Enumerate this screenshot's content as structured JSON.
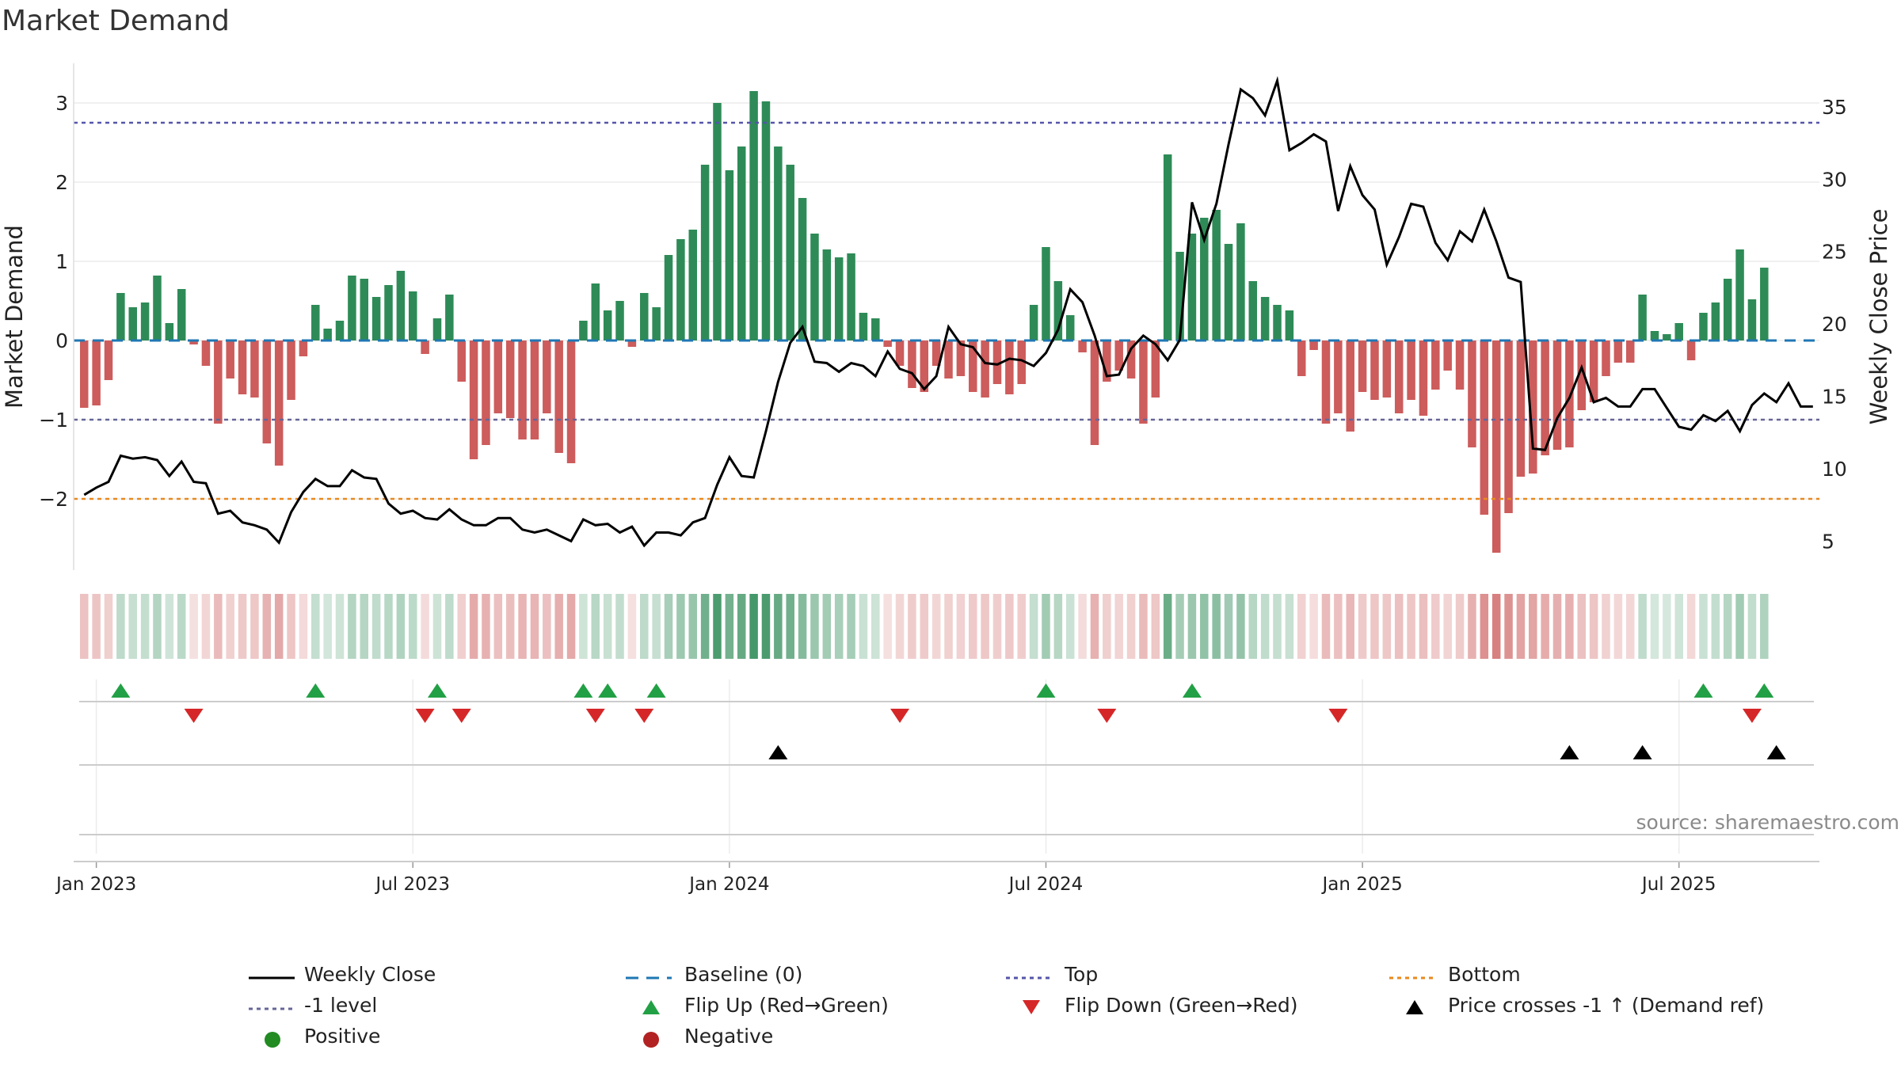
{
  "chart_data": {
    "type": "bar",
    "title": "Market Demand",
    "left_axis": {
      "label": "Market Demand",
      "ticks": [
        3,
        2,
        1,
        0,
        -1,
        -2
      ],
      "tick_labels": [
        "3",
        "2",
        "1",
        "0",
        "−1",
        "−2"
      ],
      "range": [
        -2.9,
        3.5
      ]
    },
    "right_axis": {
      "label": "Weekly Close Price",
      "ticks": [
        35,
        30,
        25,
        20,
        15,
        10,
        5
      ],
      "range": [
        3,
        38
      ]
    },
    "reference_levels": {
      "top": 2.75,
      "bottom": -2.0,
      "minus_one": -1.0,
      "baseline": 0
    },
    "x_tick_labels": [
      "Jan 2023",
      "Jul 2023",
      "Jan 2024",
      "Jul 2024",
      "Jan 2025",
      "Jul 2025"
    ],
    "x_tick_indices": [
      1,
      27,
      53,
      79,
      105,
      131
    ],
    "series": [
      {
        "name": "Market Demand",
        "values": [
          -0.85,
          -0.82,
          -0.5,
          0.6,
          0.42,
          0.48,
          0.82,
          0.22,
          0.65,
          -0.05,
          -0.32,
          -1.05,
          -0.48,
          -0.68,
          -0.72,
          -1.3,
          -1.58,
          -0.75,
          -0.2,
          0.45,
          0.15,
          0.25,
          0.82,
          0.78,
          0.55,
          0.7,
          0.88,
          0.62,
          -0.17,
          0.28,
          0.58,
          -0.52,
          -1.5,
          -1.32,
          -0.92,
          -0.98,
          -1.25,
          -1.25,
          -0.92,
          -1.42,
          -1.55,
          0.25,
          0.72,
          0.38,
          0.5,
          -0.08,
          0.6,
          0.42,
          1.08,
          1.28,
          1.4,
          2.22,
          3.0,
          2.15,
          2.45,
          3.15,
          3.02,
          2.45,
          2.22,
          1.8,
          1.35,
          1.15,
          1.05,
          1.1,
          0.35,
          0.28,
          -0.08,
          -0.32,
          -0.6,
          -0.65,
          -0.32,
          -0.48,
          -0.45,
          -0.65,
          -0.72,
          -0.55,
          -0.68,
          -0.55,
          0.45,
          1.18,
          0.75,
          0.32,
          -0.15,
          -1.32,
          -0.52,
          -0.38,
          -0.48,
          -1.05,
          -0.72,
          2.35,
          1.12,
          1.35,
          1.55,
          1.65,
          1.22,
          1.48,
          0.75,
          0.55,
          0.45,
          0.38,
          -0.45,
          -0.12,
          -1.05,
          -0.92,
          -1.15,
          -0.65,
          -0.75,
          -0.72,
          -0.92,
          -0.75,
          -0.95,
          -0.62,
          -0.38,
          -0.62,
          -1.35,
          -2.2,
          -2.68,
          -2.18,
          -1.72,
          -1.68,
          -1.45,
          -1.38,
          -1.35,
          -0.88,
          -0.78,
          -0.45,
          -0.28,
          -0.28,
          0.58,
          0.12,
          0.08,
          0.22,
          -0.25,
          0.35,
          0.48,
          0.78,
          1.15,
          0.52,
          0.92
        ]
      },
      {
        "name": "Weekly Close",
        "values": [
          8.2,
          8.7,
          9.1,
          10.9,
          10.7,
          10.8,
          10.6,
          9.5,
          10.5,
          9.1,
          9.0,
          6.9,
          7.1,
          6.3,
          6.1,
          5.8,
          4.9,
          7.0,
          8.4,
          9.3,
          8.8,
          8.8,
          9.9,
          9.4,
          9.3,
          7.6,
          6.9,
          7.1,
          6.6,
          6.5,
          7.2,
          6.5,
          6.1,
          6.1,
          6.6,
          6.6,
          5.8,
          5.6,
          5.8,
          5.4,
          5.0,
          6.5,
          6.1,
          6.2,
          5.6,
          6.0,
          4.7,
          5.6,
          5.6,
          5.4,
          6.3,
          6.6,
          8.9,
          10.8,
          9.5,
          9.4,
          12.6,
          16.0,
          18.7,
          19.8,
          17.4,
          17.3,
          16.7,
          17.3,
          17.1,
          16.4,
          18.1,
          16.9,
          16.6,
          15.5,
          16.4,
          19.8,
          18.6,
          18.4,
          17.3,
          17.2,
          17.6,
          17.5,
          17.1,
          18.0,
          19.6,
          22.4,
          21.5,
          19.2,
          16.4,
          16.5,
          18.3,
          19.2,
          18.6,
          17.5,
          18.9,
          28.4,
          25.8,
          28.3,
          32.4,
          36.2,
          35.6,
          34.4,
          36.8,
          32.0,
          32.5,
          33.1,
          32.6,
          27.8,
          30.9,
          28.9,
          27.9,
          24.1,
          26.0,
          28.3,
          28.1,
          25.6,
          24.4,
          26.4,
          25.7,
          27.9,
          25.7,
          23.2,
          22.9,
          11.4,
          11.3,
          13.5,
          14.9,
          17.0,
          14.6,
          14.9,
          14.3,
          14.3,
          15.5,
          15.5,
          14.2,
          12.9,
          12.7,
          13.7,
          13.3,
          14.0,
          12.6,
          14.4,
          15.2,
          14.6,
          15.9,
          14.3,
          14.3
        ]
      }
    ],
    "flip_up_indices": [
      3,
      19,
      29,
      41,
      43,
      47,
      79,
      91,
      133,
      138
    ],
    "flip_down_indices": [
      9,
      28,
      31,
      42,
      46,
      67,
      84,
      103,
      137
    ],
    "price_cross_indices": [
      57,
      122,
      128,
      139
    ],
    "legend": {
      "weekly_close": "Weekly Close",
      "baseline": "Baseline (0)",
      "top": "Top",
      "bottom": "Bottom",
      "minus_one": "-1 level",
      "flip_up": "Flip Up (Red→Green)",
      "flip_down": "Flip Down (Green→Red)",
      "price_cross": "Price crosses -1 ↑ (Demand ref)",
      "positive": "Positive",
      "negative": "Negative"
    },
    "source": "source: sharemaestro.com",
    "colors": {
      "positive": "#2e8b57",
      "negative": "#cd5c5c",
      "close": "#000000",
      "baseline": "#1f77b4",
      "top": "#5555aa",
      "bottom": "#e8891e",
      "minus_one": "#666699",
      "flip_up": "#22a045",
      "flip_down": "#d62728",
      "cross": "#000000",
      "legend_positive": "#228b22",
      "legend_negative": "#b22222"
    }
  }
}
